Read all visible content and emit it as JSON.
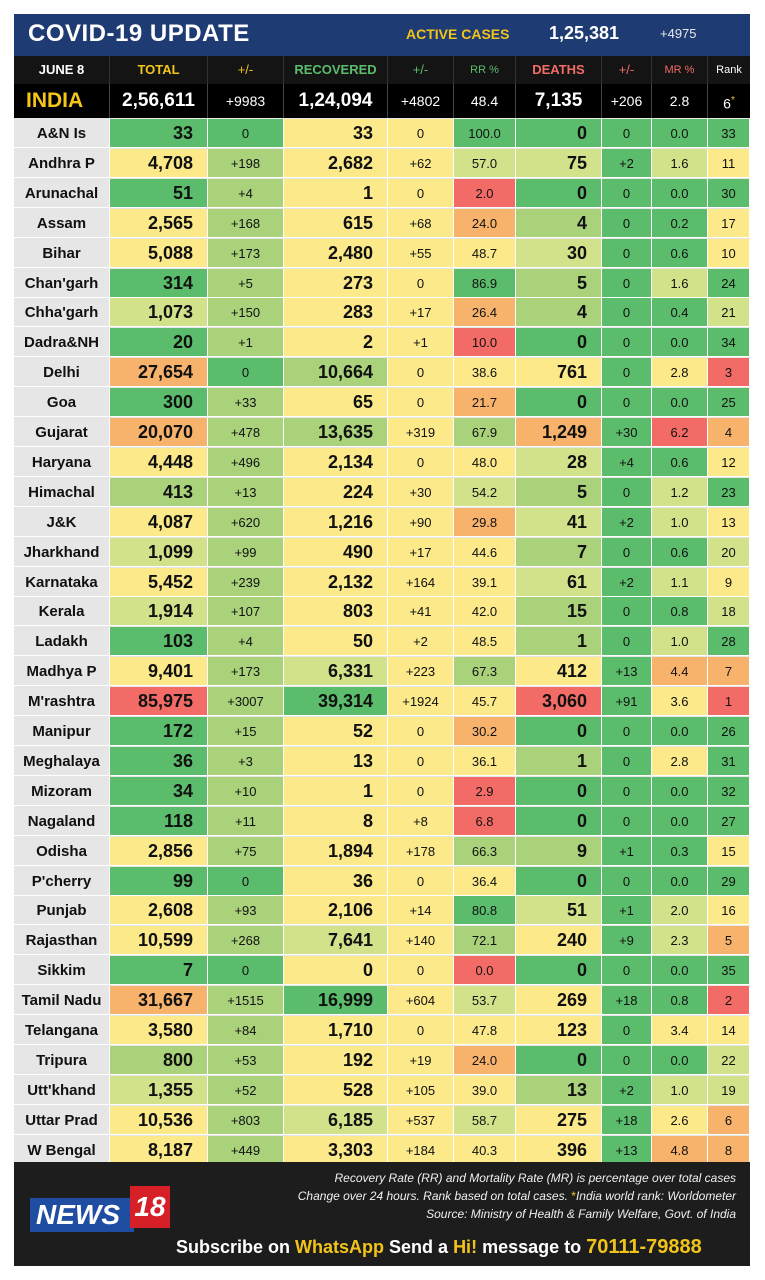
{
  "header": {
    "title": "COVID-19 UPDATE",
    "active_label": "ACTIVE CASES",
    "active_value": "1,25,381",
    "active_delta": "+4975"
  },
  "columns": {
    "date": "JUNE 8",
    "total": "TOTAL",
    "pm1": "+/-",
    "recovered": "RECOVERED",
    "pm2": "+/-",
    "rr": "RR %",
    "deaths": "DEATHS",
    "pm3": "+/-",
    "mr": "MR %",
    "rank": "Rank"
  },
  "india": {
    "name": "INDIA",
    "total": "2,56,611",
    "total_delta": "+9983",
    "recovered": "1,24,094",
    "recovered_delta": "+4802",
    "rr": "48.4",
    "deaths": "7,135",
    "deaths_delta": "+206",
    "mr": "2.8",
    "rank": "6",
    "rank_mark": "*"
  },
  "states": [
    {
      "name": "A&N Is",
      "total": "33",
      "td": "0",
      "rec": "33",
      "rd": "0",
      "rr": "100.0",
      "deaths": "0",
      "dd": "0",
      "mr": "0.0",
      "rank": "33"
    },
    {
      "name": "Andhra P",
      "total": "4,708",
      "td": "+198",
      "rec": "2,682",
      "rd": "+62",
      "rr": "57.0",
      "deaths": "75",
      "dd": "+2",
      "mr": "1.6",
      "rank": "11"
    },
    {
      "name": "Arunachal",
      "total": "51",
      "td": "+4",
      "rec": "1",
      "rd": "0",
      "rr": "2.0",
      "deaths": "0",
      "dd": "0",
      "mr": "0.0",
      "rank": "30"
    },
    {
      "name": "Assam",
      "total": "2,565",
      "td": "+168",
      "rec": "615",
      "rd": "+68",
      "rr": "24.0",
      "deaths": "4",
      "dd": "0",
      "mr": "0.2",
      "rank": "17"
    },
    {
      "name": "Bihar",
      "total": "5,088",
      "td": "+173",
      "rec": "2,480",
      "rd": "+55",
      "rr": "48.7",
      "deaths": "30",
      "dd": "0",
      "mr": "0.6",
      "rank": "10"
    },
    {
      "name": "Chan'garh",
      "total": "314",
      "td": "+5",
      "rec": "273",
      "rd": "0",
      "rr": "86.9",
      "deaths": "5",
      "dd": "0",
      "mr": "1.6",
      "rank": "24"
    },
    {
      "name": "Chha'garh",
      "total": "1,073",
      "td": "+150",
      "rec": "283",
      "rd": "+17",
      "rr": "26.4",
      "deaths": "4",
      "dd": "0",
      "mr": "0.4",
      "rank": "21"
    },
    {
      "name": "Dadra&NH",
      "total": "20",
      "td": "+1",
      "rec": "2",
      "rd": "+1",
      "rr": "10.0",
      "deaths": "0",
      "dd": "0",
      "mr": "0.0",
      "rank": "34"
    },
    {
      "name": "Delhi",
      "total": "27,654",
      "td": "0",
      "rec": "10,664",
      "rd": "0",
      "rr": "38.6",
      "deaths": "761",
      "dd": "0",
      "mr": "2.8",
      "rank": "3"
    },
    {
      "name": "Goa",
      "total": "300",
      "td": "+33",
      "rec": "65",
      "rd": "0",
      "rr": "21.7",
      "deaths": "0",
      "dd": "0",
      "mr": "0.0",
      "rank": "25"
    },
    {
      "name": "Gujarat",
      "total": "20,070",
      "td": "+478",
      "rec": "13,635",
      "rd": "+319",
      "rr": "67.9",
      "deaths": "1,249",
      "dd": "+30",
      "mr": "6.2",
      "rank": "4"
    },
    {
      "name": "Haryana",
      "total": "4,448",
      "td": "+496",
      "rec": "2,134",
      "rd": "0",
      "rr": "48.0",
      "deaths": "28",
      "dd": "+4",
      "mr": "0.6",
      "rank": "12"
    },
    {
      "name": "Himachal",
      "total": "413",
      "td": "+13",
      "rec": "224",
      "rd": "+30",
      "rr": "54.2",
      "deaths": "5",
      "dd": "0",
      "mr": "1.2",
      "rank": "23"
    },
    {
      "name": "J&K",
      "total": "4,087",
      "td": "+620",
      "rec": "1,216",
      "rd": "+90",
      "rr": "29.8",
      "deaths": "41",
      "dd": "+2",
      "mr": "1.0",
      "rank": "13"
    },
    {
      "name": "Jharkhand",
      "total": "1,099",
      "td": "+99",
      "rec": "490",
      "rd": "+17",
      "rr": "44.6",
      "deaths": "7",
      "dd": "0",
      "mr": "0.6",
      "rank": "20"
    },
    {
      "name": "Karnataka",
      "total": "5,452",
      "td": "+239",
      "rec": "2,132",
      "rd": "+164",
      "rr": "39.1",
      "deaths": "61",
      "dd": "+2",
      "mr": "1.1",
      "rank": "9"
    },
    {
      "name": "Kerala",
      "total": "1,914",
      "td": "+107",
      "rec": "803",
      "rd": "+41",
      "rr": "42.0",
      "deaths": "15",
      "dd": "0",
      "mr": "0.8",
      "rank": "18"
    },
    {
      "name": "Ladakh",
      "total": "103",
      "td": "+4",
      "rec": "50",
      "rd": "+2",
      "rr": "48.5",
      "deaths": "1",
      "dd": "0",
      "mr": "1.0",
      "rank": "28"
    },
    {
      "name": "Madhya P",
      "total": "9,401",
      "td": "+173",
      "rec": "6,331",
      "rd": "+223",
      "rr": "67.3",
      "deaths": "412",
      "dd": "+13",
      "mr": "4.4",
      "rank": "7"
    },
    {
      "name": "M'rashtra",
      "total": "85,975",
      "td": "+3007",
      "rec": "39,314",
      "rd": "+1924",
      "rr": "45.7",
      "deaths": "3,060",
      "dd": "+91",
      "mr": "3.6",
      "rank": "1"
    },
    {
      "name": "Manipur",
      "total": "172",
      "td": "+15",
      "rec": "52",
      "rd": "0",
      "rr": "30.2",
      "deaths": "0",
      "dd": "0",
      "mr": "0.0",
      "rank": "26"
    },
    {
      "name": "Meghalaya",
      "total": "36",
      "td": "+3",
      "rec": "13",
      "rd": "0",
      "rr": "36.1",
      "deaths": "1",
      "dd": "0",
      "mr": "2.8",
      "rank": "31"
    },
    {
      "name": "Mizoram",
      "total": "34",
      "td": "+10",
      "rec": "1",
      "rd": "0",
      "rr": "2.9",
      "deaths": "0",
      "dd": "0",
      "mr": "0.0",
      "rank": "32"
    },
    {
      "name": "Nagaland",
      "total": "118",
      "td": "+11",
      "rec": "8",
      "rd": "+8",
      "rr": "6.8",
      "deaths": "0",
      "dd": "0",
      "mr": "0.0",
      "rank": "27"
    },
    {
      "name": "Odisha",
      "total": "2,856",
      "td": "+75",
      "rec": "1,894",
      "rd": "+178",
      "rr": "66.3",
      "deaths": "9",
      "dd": "+1",
      "mr": "0.3",
      "rank": "15"
    },
    {
      "name": "P'cherry",
      "total": "99",
      "td": "0",
      "rec": "36",
      "rd": "0",
      "rr": "36.4",
      "deaths": "0",
      "dd": "0",
      "mr": "0.0",
      "rank": "29"
    },
    {
      "name": "Punjab",
      "total": "2,608",
      "td": "+93",
      "rec": "2,106",
      "rd": "+14",
      "rr": "80.8",
      "deaths": "51",
      "dd": "+1",
      "mr": "2.0",
      "rank": "16"
    },
    {
      "name": "Rajasthan",
      "total": "10,599",
      "td": "+268",
      "rec": "7,641",
      "rd": "+140",
      "rr": "72.1",
      "deaths": "240",
      "dd": "+9",
      "mr": "2.3",
      "rank": "5"
    },
    {
      "name": "Sikkim",
      "total": "7",
      "td": "0",
      "rec": "0",
      "rd": "0",
      "rr": "0.0",
      "deaths": "0",
      "dd": "0",
      "mr": "0.0",
      "rank": "35"
    },
    {
      "name": "Tamil Nadu",
      "total": "31,667",
      "td": "+1515",
      "rec": "16,999",
      "rd": "+604",
      "rr": "53.7",
      "deaths": "269",
      "dd": "+18",
      "mr": "0.8",
      "rank": "2"
    },
    {
      "name": "Telangana",
      "total": "3,580",
      "td": "+84",
      "rec": "1,710",
      "rd": "0",
      "rr": "47.8",
      "deaths": "123",
      "dd": "0",
      "mr": "3.4",
      "rank": "14"
    },
    {
      "name": "Tripura",
      "total": "800",
      "td": "+53",
      "rec": "192",
      "rd": "+19",
      "rr": "24.0",
      "deaths": "0",
      "dd": "0",
      "mr": "0.0",
      "rank": "22"
    },
    {
      "name": "Utt'khand",
      "total": "1,355",
      "td": "+52",
      "rec": "528",
      "rd": "+105",
      "rr": "39.0",
      "deaths": "13",
      "dd": "+2",
      "mr": "1.0",
      "rank": "19"
    },
    {
      "name": "Uttar Prad",
      "total": "10,536",
      "td": "+803",
      "rec": "6,185",
      "rd": "+537",
      "rr": "58.7",
      "deaths": "275",
      "dd": "+18",
      "mr": "2.6",
      "rank": "6"
    },
    {
      "name": "W Bengal",
      "total": "8,187",
      "td": "+449",
      "rec": "3,303",
      "rd": "+184",
      "rr": "40.3",
      "deaths": "396",
      "dd": "+13",
      "mr": "4.8",
      "rank": "8"
    }
  ],
  "colors": {
    "green": "#5bbd6b",
    "light_green": "#a9d27a",
    "pale_green": "#d2e28a",
    "yellow": "#fbe98a",
    "orange": "#f7b26c",
    "red": "#f26b66",
    "header_blue": "#1f3b73",
    "accent_yellow": "#f2c41a"
  },
  "footer": {
    "note1": "Recovery Rate (RR) and Mortality Rate (MR) is percentage over total cases",
    "note2": "Change over 24 hours. Rank based on total cases.",
    "note2_star": " *",
    "note2_b": "India world rank: Worldometer",
    "note3": "Source: Ministry of Health & Family Welfare, Govt. of India",
    "logo_news": "NEWS",
    "logo_18": "18",
    "sub_a": "Subscribe on ",
    "sub_b": "WhatsApp",
    "sub_c": " Send a ",
    "sub_d": "Hi!",
    "sub_e": " message to ",
    "sub_f": "70111-79888"
  }
}
